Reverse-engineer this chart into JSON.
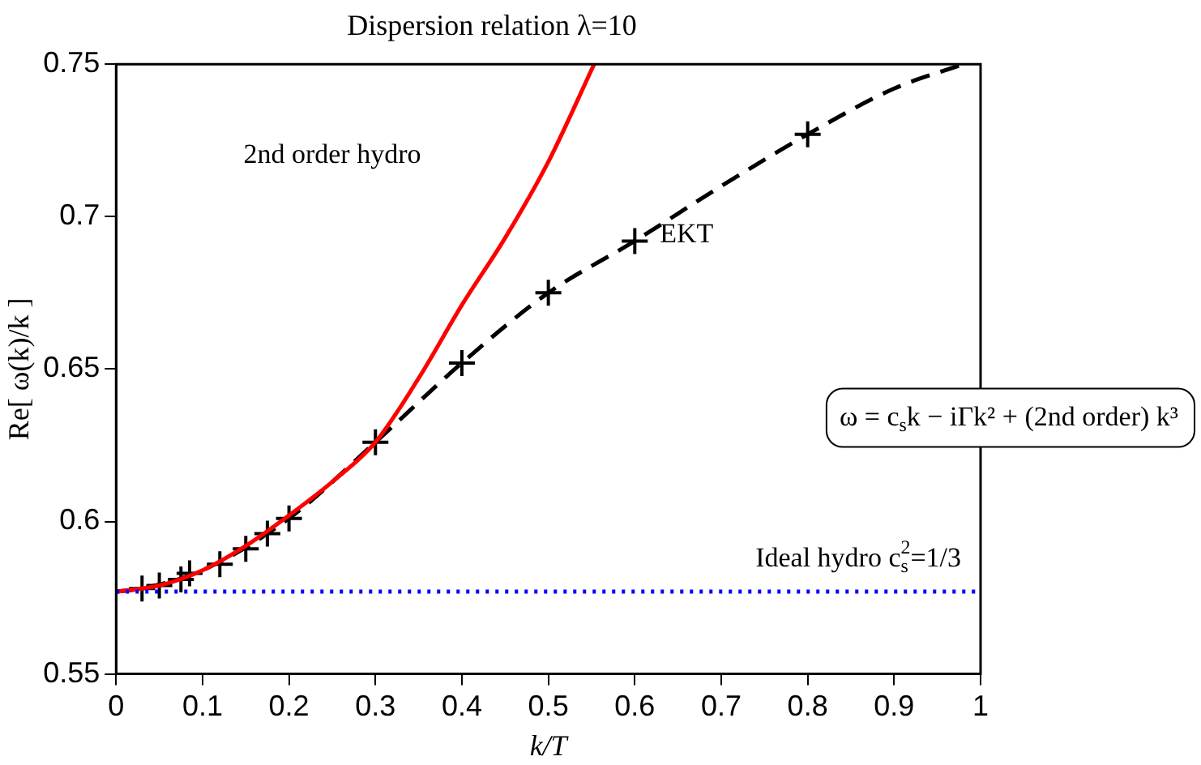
{
  "chart_data": {
    "type": "line",
    "title": "Dispersion relation λ=10",
    "xlabel": "k/T",
    "ylabel": "Re[ ω(k)/k ]",
    "xlim": [
      0,
      1
    ],
    "xticks": [
      0,
      0.1,
      0.2,
      0.3,
      0.4,
      0.5,
      0.6,
      0.7,
      0.8,
      0.9,
      1
    ],
    "ylim": [
      0.55,
      0.75
    ],
    "yticks": [
      0.55,
      0.6,
      0.65,
      0.7,
      0.75
    ],
    "grid": false,
    "legend": false,
    "series": [
      {
        "color": "#ff0000",
        "line_style": "solid",
        "marker": "none",
        "x": [
          0,
          0.05,
          0.1,
          0.15,
          0.2,
          0.25,
          0.3,
          0.35,
          0.4,
          0.45,
          0.5,
          0.553
        ],
        "values": [
          0.577,
          0.579,
          0.584,
          0.592,
          0.602,
          0.613,
          0.626,
          0.647,
          0.671,
          0.693,
          0.718,
          0.75
        ]
      },
      {
        "color": "#000000",
        "line_style": "dashed",
        "marker": "none",
        "x": [
          0,
          0.03,
          0.1,
          0.2,
          0.3,
          0.4,
          0.5,
          0.6,
          0.7,
          0.8,
          0.9,
          0.98
        ],
        "values": [
          0.577,
          0.578,
          0.584,
          0.601,
          0.626,
          0.652,
          0.675,
          0.692,
          0.71,
          0.727,
          0.742,
          0.75
        ]
      },
      {
        "type": "scatter",
        "color": "#000000",
        "marker": "cross",
        "x": [
          0.03,
          0.05,
          0.075,
          0.085,
          0.12,
          0.15,
          0.175,
          0.2,
          0.3,
          0.4,
          0.5,
          0.6,
          0.8
        ],
        "values": [
          0.578,
          0.579,
          0.581,
          0.583,
          0.586,
          0.591,
          0.596,
          0.601,
          0.626,
          0.652,
          0.675,
          0.692,
          0.727
        ]
      }
    ],
    "ref_lines": [
      {
        "axis": "y",
        "value": 0.577,
        "label": "Ideal hydro c$_{s}$$^{2}$=1/3",
        "color": "#0000ff",
        "line_style": "dotted"
      }
    ],
    "annotations": [
      "2nd order hydro",
      "EKT",
      "ω = c$_{s}$k − iΓk² + (2nd order) k³"
    ]
  }
}
